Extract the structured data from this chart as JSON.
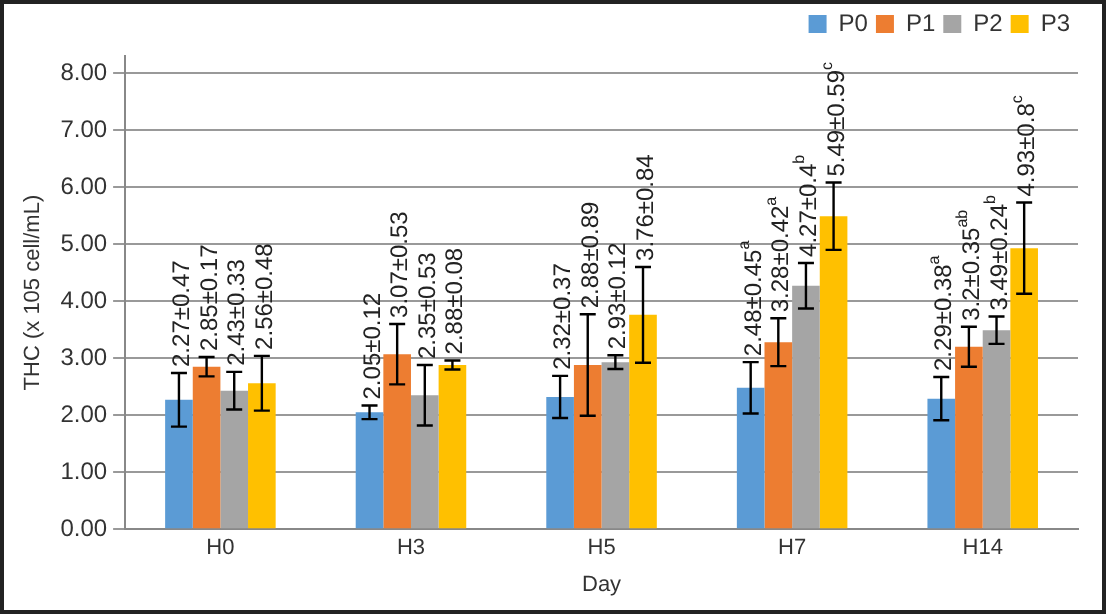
{
  "chart_data": {
    "type": "bar",
    "xlabel": "Day",
    "ylabel": "THC (x 105 cell/mL)",
    "categories": [
      "H0",
      "H3",
      "H5",
      "H7",
      "H14"
    ],
    "series": [
      {
        "name": "P0",
        "color": "#5b9bd5",
        "values": [
          2.27,
          2.05,
          2.32,
          2.48,
          2.29
        ],
        "errors": [
          0.47,
          0.12,
          0.37,
          0.45,
          0.38
        ],
        "value_labels": [
          "2.27±0.47",
          "2.05±0.12",
          "2.32±0.37",
          "2.48±0.45$^{a}$",
          "2.29±0.38$^{a}$"
        ]
      },
      {
        "name": "P1",
        "color": "#ed7d31",
        "values": [
          2.85,
          3.07,
          2.88,
          3.28,
          3.2
        ],
        "errors": [
          0.17,
          0.53,
          0.89,
          0.42,
          0.35
        ],
        "value_labels": [
          "2.85±0.17",
          "3.07±0.53",
          "2.88±0.89",
          "3.28±0.42$^{a}$",
          "3.2±0.35$^{ab}$"
        ]
      },
      {
        "name": "P2",
        "color": "#a5a5a5",
        "values": [
          2.43,
          2.35,
          2.93,
          4.27,
          3.49
        ],
        "errors": [
          0.33,
          0.53,
          0.12,
          0.4,
          0.24
        ],
        "value_labels": [
          "2.43±0.33",
          "2.35±0.53",
          "2.93±0.12",
          "4.27±0.4$^{b}$",
          "3.49±0.24$^{b}$"
        ]
      },
      {
        "name": "P3",
        "color": "#ffc000",
        "values": [
          2.56,
          2.88,
          3.76,
          5.49,
          4.93
        ],
        "errors": [
          0.48,
          0.08,
          0.84,
          0.59,
          0.8
        ],
        "value_labels": [
          "2.56±0.48",
          "2.88±0.08",
          "3.76±0.84",
          "5.49±0.59$^{c}$",
          "4.93±0.8$^{c}$"
        ]
      }
    ],
    "ylim": [
      0,
      8.3
    ],
    "yticks": [
      {
        "value": 0,
        "label": "0.00"
      },
      {
        "value": 1,
        "label": "1.00"
      },
      {
        "value": 2,
        "label": "2.00"
      },
      {
        "value": 3,
        "label": "3.00"
      },
      {
        "value": 4,
        "label": "4.00"
      },
      {
        "value": 5,
        "label": "5.00"
      },
      {
        "value": 6,
        "label": "6.00"
      },
      {
        "value": 7,
        "label": "7.00"
      },
      {
        "value": 8,
        "label": "8.00"
      }
    ],
    "grid": "y",
    "legend": "top right"
  }
}
